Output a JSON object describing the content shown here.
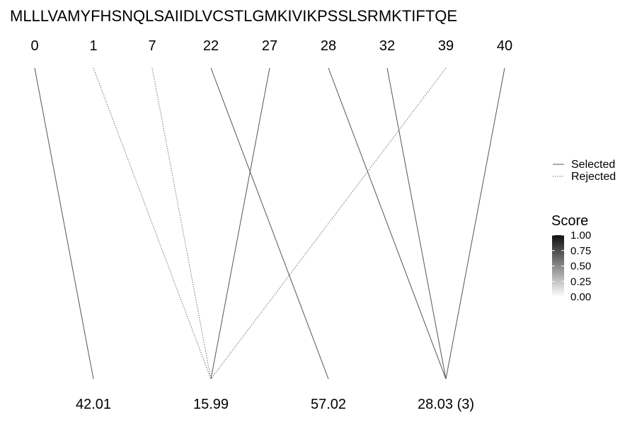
{
  "diagram": {
    "sequence": "MLLLVAMYFHSNQLSAIIDLVCSTLGMKIVIKPSSLSRMKTIFTQE",
    "top_nodes": [
      {
        "id": "t0",
        "label": "0"
      },
      {
        "id": "t1",
        "label": "1"
      },
      {
        "id": "t7",
        "label": "7"
      },
      {
        "id": "t22",
        "label": "22"
      },
      {
        "id": "t27",
        "label": "27"
      },
      {
        "id": "t28",
        "label": "28"
      },
      {
        "id": "t32",
        "label": "32"
      },
      {
        "id": "t39",
        "label": "39"
      },
      {
        "id": "t40",
        "label": "40"
      }
    ],
    "bottom_nodes": [
      {
        "id": "b0",
        "label": "42.01"
      },
      {
        "id": "b1",
        "label": "15.99"
      },
      {
        "id": "b2",
        "label": "57.02"
      },
      {
        "id": "b3",
        "label": "28.03 (3)"
      }
    ],
    "edges": [
      {
        "from": "t0",
        "to": "b0",
        "status": "selected"
      },
      {
        "from": "t1",
        "to": "b1",
        "status": "rejected"
      },
      {
        "from": "t7",
        "to": "b1",
        "status": "rejected"
      },
      {
        "from": "t22",
        "to": "b2",
        "status": "selected"
      },
      {
        "from": "t27",
        "to": "b1",
        "status": "selected"
      },
      {
        "from": "t28",
        "to": "b3",
        "status": "selected"
      },
      {
        "from": "t32",
        "to": "b3",
        "status": "selected"
      },
      {
        "from": "t39",
        "to": "b1",
        "status": "rejected"
      },
      {
        "from": "t40",
        "to": "b3",
        "status": "selected"
      }
    ],
    "legend": {
      "items": [
        {
          "label": "Selected",
          "style": "solid"
        },
        {
          "label": "Rejected",
          "style": "dotted"
        }
      ]
    },
    "score_scale": {
      "title": "Score",
      "ticks": [
        "1.00",
        "0.75",
        "0.50",
        "0.25",
        "0.00"
      ],
      "color_high": "#111111",
      "color_low": "#ffffff"
    },
    "colors": {
      "line": "#555555",
      "text": "#000000"
    }
  }
}
